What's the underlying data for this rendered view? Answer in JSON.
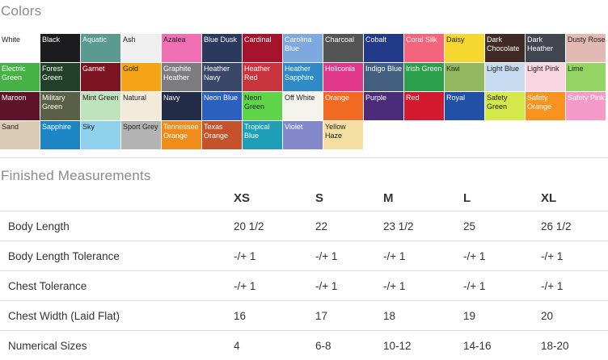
{
  "colors_section": {
    "title": "Colors",
    "swatches": [
      {
        "name": "White",
        "hex": "#ffffff",
        "text": "#222222"
      },
      {
        "name": "Black",
        "hex": "#1c1c1e",
        "text": "#ffffff"
      },
      {
        "name": "Aquatic",
        "hex": "#5a9a90",
        "text": "#ffffff"
      },
      {
        "name": "Ash",
        "hex": "#efefef",
        "text": "#222222"
      },
      {
        "name": "Azalea",
        "hex": "#f06eb4",
        "text": "#222222"
      },
      {
        "name": "Blue Dusk",
        "hex": "#2b3a5c",
        "text": "#ffffff"
      },
      {
        "name": "Cardinal",
        "hex": "#a5132c",
        "text": "#ffffff"
      },
      {
        "name": "Carolina Blue",
        "hex": "#7ea8e0",
        "text": "#ffffff"
      },
      {
        "name": "Charcoal",
        "hex": "#545454",
        "text": "#ffffff"
      },
      {
        "name": "Cobalt",
        "hex": "#23398a",
        "text": "#ffffff"
      },
      {
        "name": "Coral Silk",
        "hex": "#f4647c",
        "text": "#ffffff"
      },
      {
        "name": "Daisy",
        "hex": "#f6d730",
        "text": "#222222"
      },
      {
        "name": "Dark Chocolate",
        "hex": "#3f2a26",
        "text": "#ffffff"
      },
      {
        "name": "Dark Heather",
        "hex": "#424650",
        "text": "#ffffff"
      },
      {
        "name": "Dusty Rose",
        "hex": "#e2b9b3",
        "text": "#222222"
      },
      {
        "name": "Electric Green",
        "hex": "#46b145",
        "text": "#ffffff"
      },
      {
        "name": "Forest Green",
        "hex": "#20402a",
        "text": "#ffffff"
      },
      {
        "name": "Garnet",
        "hex": "#7c1422",
        "text": "#ffffff"
      },
      {
        "name": "Gold",
        "hex": "#f5a417",
        "text": "#222222"
      },
      {
        "name": "Graphite Heather",
        "hex": "#7d7d81",
        "text": "#ffffff"
      },
      {
        "name": "Heather Navy",
        "hex": "#3b4768",
        "text": "#ffffff"
      },
      {
        "name": "Heather Red",
        "hex": "#c8353c",
        "text": "#ffffff"
      },
      {
        "name": "Heather Sapphire",
        "hex": "#2e8bc5",
        "text": "#ffffff"
      },
      {
        "name": "Heliconia",
        "hex": "#e0378d",
        "text": "#ffffff"
      },
      {
        "name": "Indigo Blue",
        "hex": "#45607f",
        "text": "#ffffff"
      },
      {
        "name": "Irish Green",
        "hex": "#2c9f4a",
        "text": "#ffffff"
      },
      {
        "name": "Kiwi",
        "hex": "#93b960",
        "text": "#222222"
      },
      {
        "name": "Light Blue",
        "hex": "#c6dbef",
        "text": "#222222"
      },
      {
        "name": "Light Pink",
        "hex": "#f9d6e2",
        "text": "#222222"
      },
      {
        "name": "Lime",
        "hex": "#93d462",
        "text": "#222222"
      },
      {
        "name": "Maroon",
        "hex": "#5d1428",
        "text": "#ffffff"
      },
      {
        "name": "Military Green",
        "hex": "#5a6045",
        "text": "#ffffff"
      },
      {
        "name": "Mint Green",
        "hex": "#bfe3bd",
        "text": "#222222"
      },
      {
        "name": "Natural",
        "hex": "#f4ead9",
        "text": "#222222"
      },
      {
        "name": "Navy",
        "hex": "#232c46",
        "text": "#ffffff"
      },
      {
        "name": "Neon Blue",
        "hex": "#2b5fc0",
        "text": "#ffffff"
      },
      {
        "name": "Neon Green",
        "hex": "#5fd64a",
        "text": "#222222"
      },
      {
        "name": "Off White",
        "hex": "#f5f3ee",
        "text": "#222222"
      },
      {
        "name": "Orange",
        "hex": "#f26a21",
        "text": "#ffffff"
      },
      {
        "name": "Purple",
        "hex": "#4a2c7a",
        "text": "#ffffff"
      },
      {
        "name": "Red",
        "hex": "#d3192f",
        "text": "#ffffff"
      },
      {
        "name": "Royal",
        "hex": "#2150a6",
        "text": "#ffffff"
      },
      {
        "name": "Safety Green",
        "hex": "#d4e84a",
        "text": "#222222"
      },
      {
        "name": "Safety Orange",
        "hex": "#f7931e",
        "text": "#ffffff"
      },
      {
        "name": "Safety Pink",
        "hex": "#f59ac8",
        "text": "#ffffff"
      },
      {
        "name": "Sand",
        "hex": "#dccbb4",
        "text": "#222222"
      },
      {
        "name": "Sapphire",
        "hex": "#1b86c3",
        "text": "#ffffff"
      },
      {
        "name": "Sky",
        "hex": "#8fd1ec",
        "text": "#222222"
      },
      {
        "name": "Sport Grey",
        "hex": "#b3b3b3",
        "text": "#222222"
      },
      {
        "name": "Tennessee Orange",
        "hex": "#f08c1a",
        "text": "#ffffff"
      },
      {
        "name": "Texas Orange",
        "hex": "#c4532b",
        "text": "#ffffff"
      },
      {
        "name": "Tropical Blue",
        "hex": "#1e9fb7",
        "text": "#ffffff"
      },
      {
        "name": "Violet",
        "hex": "#8389c8",
        "text": "#ffffff"
      },
      {
        "name": "Yellow Haze",
        "hex": "#f3dfa2",
        "text": "#222222"
      }
    ]
  },
  "measurements_section": {
    "title": "Finished Measurements",
    "sizes": [
      "XS",
      "S",
      "M",
      "L",
      "XL"
    ],
    "rows": [
      {
        "label": "Body Length",
        "values": [
          "20 1/2",
          "22",
          "23 1/2",
          "25",
          "26 1/2"
        ]
      },
      {
        "label": "Body Length Tolerance",
        "values": [
          "-/+ 1",
          "-/+ 1",
          "-/+ 1",
          "-/+ 1",
          "-/+ 1"
        ]
      },
      {
        "label": "Chest Tolerance",
        "values": [
          "-/+ 1",
          "-/+ 1",
          "-/+ 1",
          "-/+ 1",
          "-/+ 1"
        ]
      },
      {
        "label": "Chest Width (Laid Flat)",
        "values": [
          "16",
          "17",
          "18",
          "19",
          "20"
        ]
      },
      {
        "label": "Numerical Sizes",
        "values": [
          "4",
          "6-8",
          "10-12",
          "14-16",
          "18-20"
        ]
      }
    ]
  }
}
